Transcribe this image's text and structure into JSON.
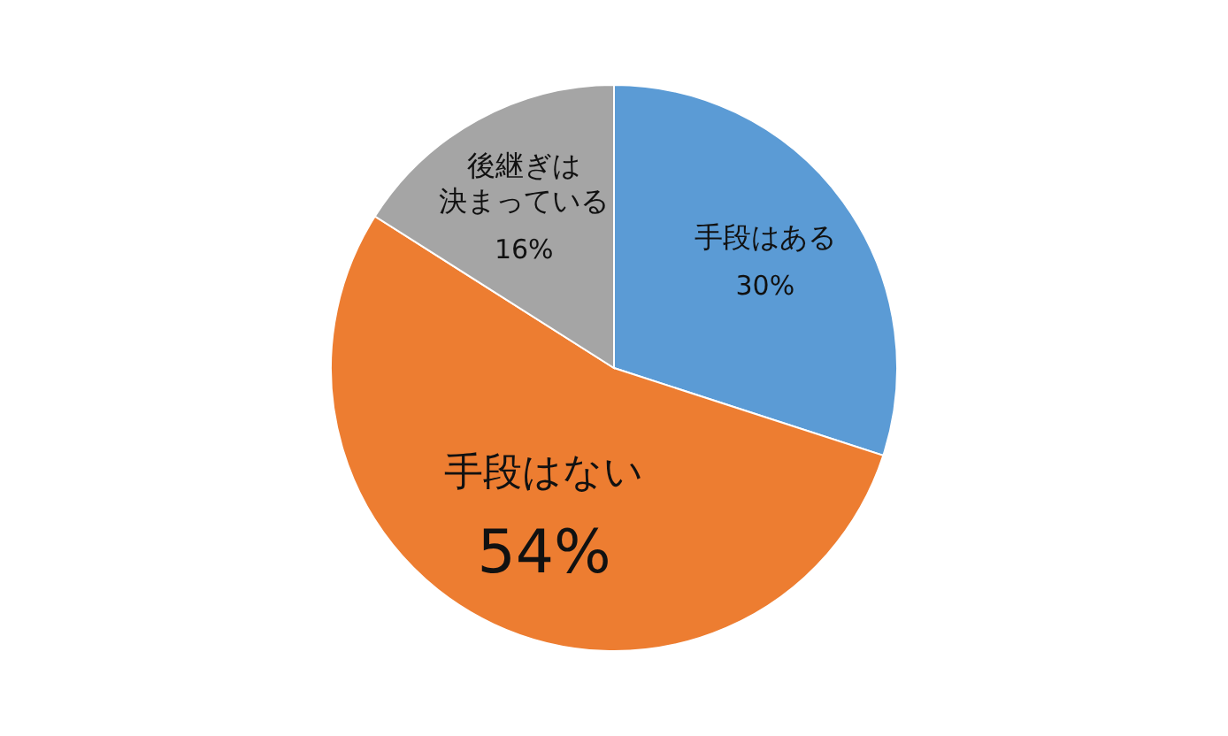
{
  "chart_data": {
    "type": "pie",
    "categories": [
      "手段はある",
      "手段はない",
      "後継ぎは決まっている"
    ],
    "values": [
      30,
      54,
      16
    ],
    "colors": [
      "#5b9bd5",
      "#ed7d31",
      "#a5a5a5"
    ],
    "value_labels": [
      "30%",
      "54%",
      "16%"
    ]
  }
}
